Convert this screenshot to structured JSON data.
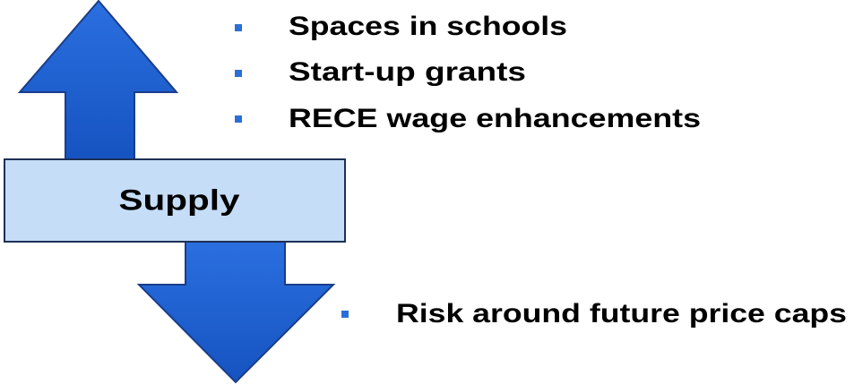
{
  "box": {
    "label": "Supply"
  },
  "up_items": [
    "Spaces in schools",
    "Start-up grants",
    "RECE wage enhancements"
  ],
  "down_items": [
    "Risk around future price caps"
  ]
}
